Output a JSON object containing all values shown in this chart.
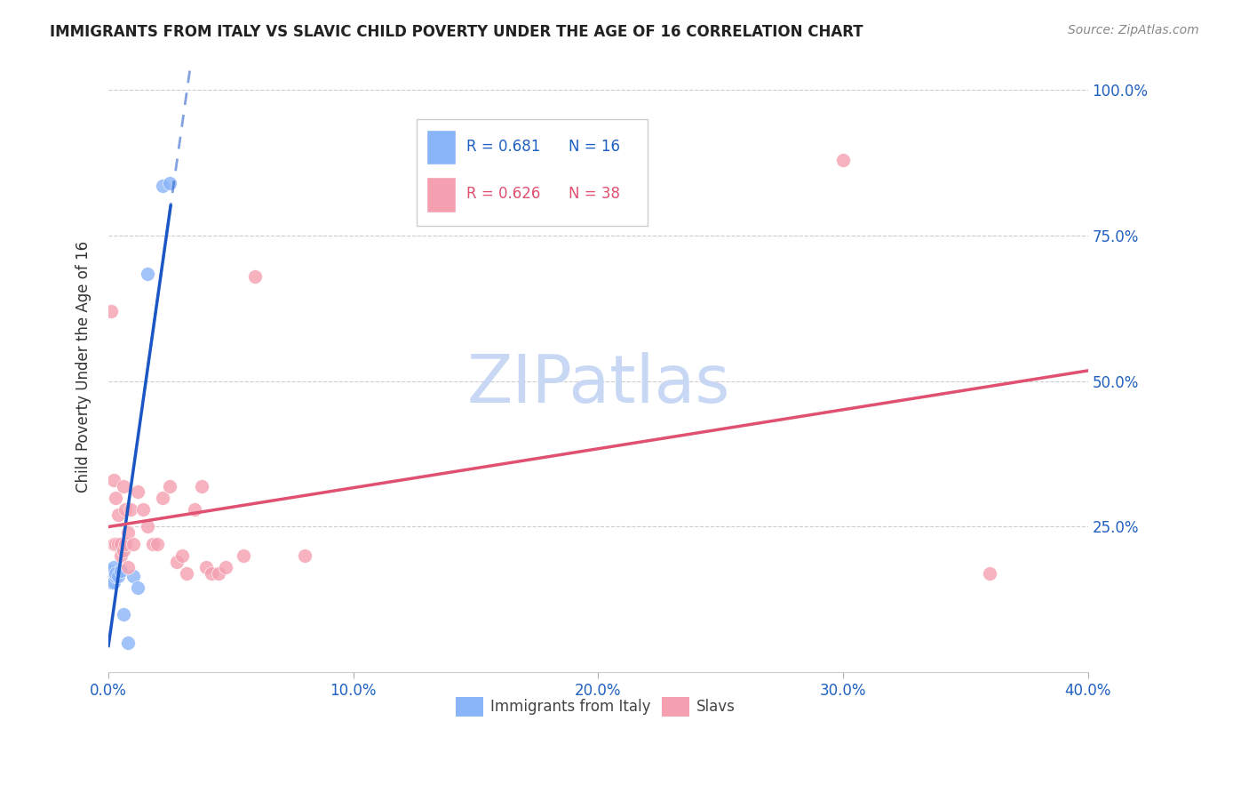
{
  "title": "IMMIGRANTS FROM ITALY VS SLAVIC CHILD POVERTY UNDER THE AGE OF 16 CORRELATION CHART",
  "source": "Source: ZipAtlas.com",
  "ylabel": "Child Poverty Under the Age of 16",
  "ytick_vals": [
    0.0,
    0.25,
    0.5,
    0.75,
    1.0
  ],
  "ytick_labels": [
    "",
    "25.0%",
    "50.0%",
    "75.0%",
    "100.0%"
  ],
  "xtick_vals": [
    0.0,
    0.1,
    0.2,
    0.3,
    0.4
  ],
  "xtick_labels": [
    "0.0%",
    "10.0%",
    "20.0%",
    "30.0%",
    "40.0%"
  ],
  "xlim": [
    0.0,
    0.4
  ],
  "ylim": [
    0.0,
    1.05
  ],
  "legend_italy_r": "R = 0.681",
  "legend_italy_n": "N = 16",
  "legend_slavs_r": "R = 0.626",
  "legend_slavs_n": "N = 38",
  "color_italy": "#8ab4f8",
  "color_slavs": "#f4a0b0",
  "trendline_italy_color": "#1a56c4",
  "trendline_slavs_color": "#e05070",
  "watermark_color": "#c8d8f4",
  "italy_scatter_x": [
    0.0005,
    0.001,
    0.0015,
    0.002,
    0.002,
    0.003,
    0.003,
    0.004,
    0.005,
    0.006,
    0.008,
    0.01,
    0.012,
    0.016,
    0.022,
    0.025
  ],
  "italy_scatter_y": [
    0.175,
    0.155,
    0.165,
    0.18,
    0.155,
    0.165,
    0.17,
    0.165,
    0.175,
    0.1,
    0.05,
    0.165,
    0.145,
    0.685,
    0.835,
    0.84
  ],
  "slavs_scatter_x": [
    0.001,
    0.002,
    0.002,
    0.003,
    0.003,
    0.004,
    0.004,
    0.005,
    0.005,
    0.006,
    0.006,
    0.007,
    0.007,
    0.008,
    0.008,
    0.009,
    0.01,
    0.012,
    0.014,
    0.016,
    0.018,
    0.02,
    0.022,
    0.025,
    0.028,
    0.03,
    0.032,
    0.035,
    0.038,
    0.04,
    0.042,
    0.045,
    0.048,
    0.055,
    0.06,
    0.08,
    0.3,
    0.36
  ],
  "slavs_scatter_y": [
    0.62,
    0.22,
    0.33,
    0.3,
    0.22,
    0.22,
    0.27,
    0.22,
    0.2,
    0.21,
    0.32,
    0.28,
    0.22,
    0.24,
    0.18,
    0.28,
    0.22,
    0.31,
    0.28,
    0.25,
    0.22,
    0.22,
    0.3,
    0.32,
    0.19,
    0.2,
    0.17,
    0.28,
    0.32,
    0.18,
    0.17,
    0.17,
    0.18,
    0.2,
    0.68,
    0.2,
    0.88,
    0.17
  ]
}
